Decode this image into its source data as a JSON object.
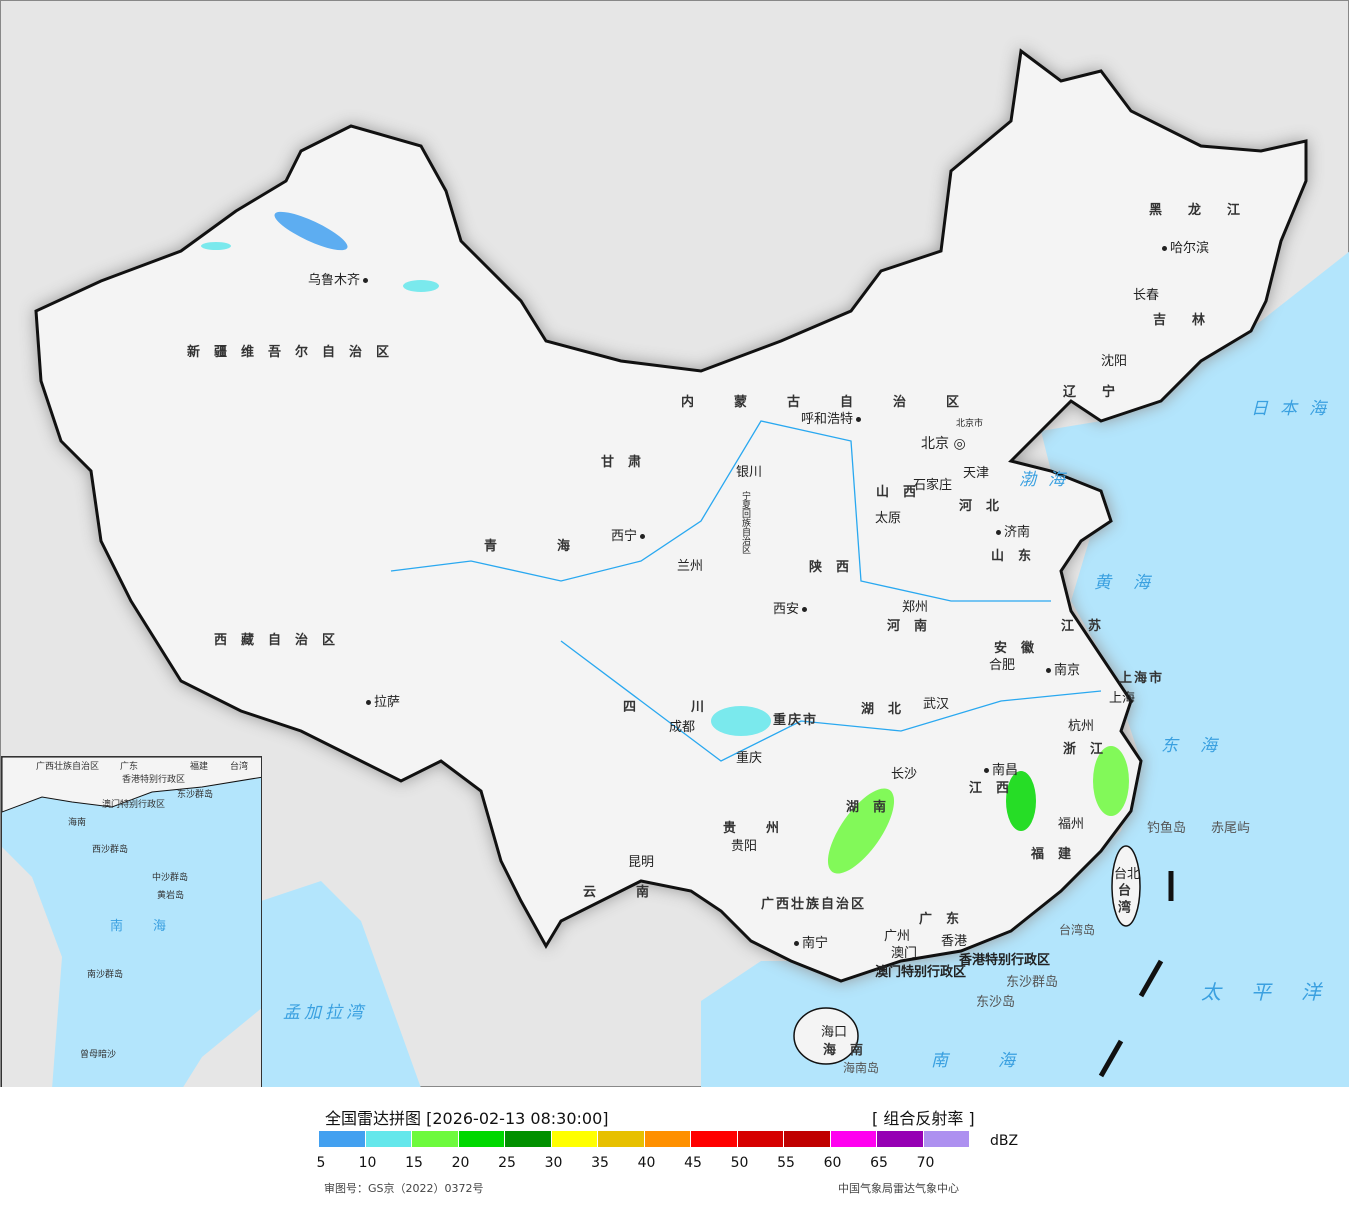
{
  "map": {
    "colors": {
      "sea": "#b3e5fc",
      "land": "#f4f4f4",
      "outside": "#e6e6e6",
      "border": "#111",
      "river": "#29a8f0"
    },
    "provinces": [
      "新疆维吾尔自治区",
      "西藏自治区",
      "青海",
      "甘肃",
      "内蒙古自治区",
      "黑龙江",
      "吉林",
      "辽宁",
      "河北",
      "山西",
      "陕西",
      "河南",
      "山东",
      "江苏",
      "安徽",
      "浙江",
      "湖北",
      "四川",
      "重庆市",
      "贵州",
      "云南",
      "湖南",
      "江西",
      "福建",
      "广西壮族自治区",
      "广东",
      "海南",
      "台湾",
      "上海市",
      "宁夏回族自治区"
    ],
    "cities": [
      "乌鲁木齐",
      "拉萨",
      "西宁",
      "兰州",
      "银川",
      "呼和浩特",
      "北京",
      "北京市",
      "天津",
      "石家庄",
      "太原",
      "济南",
      "郑州",
      "西安",
      "成都",
      "重庆",
      "武汉",
      "合肥",
      "南京",
      "上海",
      "杭州",
      "长沙",
      "南昌",
      "福州",
      "贵阳",
      "昆明",
      "南宁",
      "广州",
      "香港",
      "澳门",
      "海口",
      "台北",
      "哈尔滨",
      "长春",
      "沈阳"
    ],
    "others": [
      "香港特别行政区",
      "澳门特别行政区",
      "东沙群岛",
      "东沙岛",
      "钓鱼岛",
      "赤尾屿",
      "台湾岛",
      "海南岛"
    ],
    "seas": [
      "日本海",
      "渤海",
      "黄海",
      "东海",
      "太平洋",
      "南海",
      "孟加拉湾"
    ],
    "inset": [
      "广西壮族自治区",
      "广东",
      "福建",
      "台湾",
      "海南",
      "香港特别行政区",
      "澳门特别行政区",
      "东沙群岛",
      "西沙群岛",
      "中沙群岛",
      "黄岩岛",
      "南海",
      "南沙群岛",
      "曾母暗沙"
    ]
  },
  "legend": {
    "title": "全国雷达拼图 [2026-02-13 08:30:00]",
    "product": "[ 组合反射率 ]",
    "unit": "dBZ",
    "ticks": [
      "5",
      "10",
      "15",
      "20",
      "25",
      "30",
      "35",
      "40",
      "45",
      "50",
      "55",
      "60",
      "65",
      "70"
    ],
    "colors": [
      "#42a0f0",
      "#64e7eb",
      "#6dfa3d",
      "#00d800",
      "#019000",
      "#ffff00",
      "#e7c000",
      "#ff9000",
      "#ff0000",
      "#d60000",
      "#c00000",
      "#ff00f0",
      "#9600b4",
      "#ad90f0"
    ],
    "approval": "审图号：GS京（2022）0372号",
    "source": "中国气象局雷达气象中心"
  }
}
